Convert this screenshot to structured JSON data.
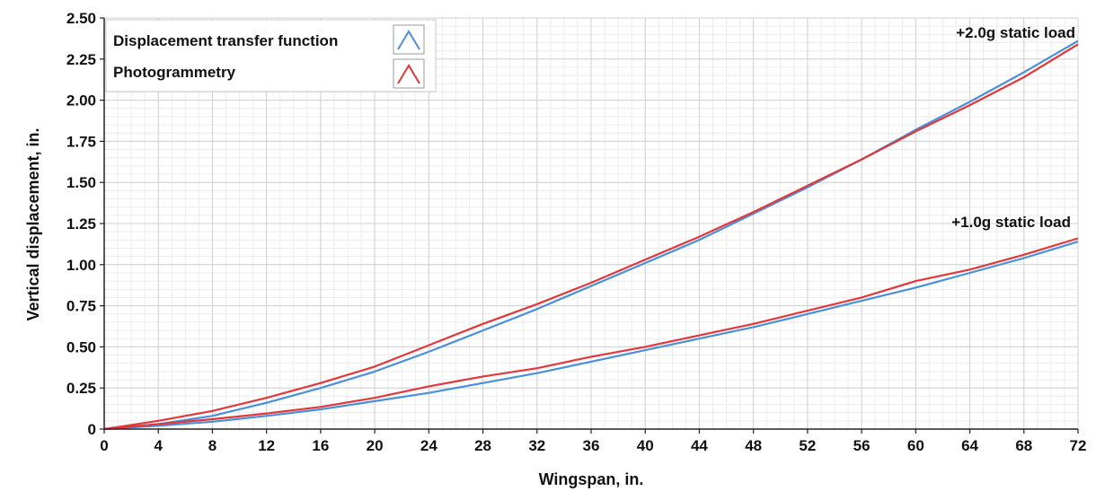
{
  "chart_data": {
    "type": "line",
    "xlabel": "Wingspan, in.",
    "ylabel": "Vertical displacement, in.",
    "xlim": [
      0,
      72
    ],
    "ylim": [
      0,
      2.5
    ],
    "x_ticks": [
      0,
      4,
      8,
      12,
      16,
      20,
      24,
      28,
      32,
      36,
      40,
      44,
      48,
      52,
      56,
      60,
      64,
      68,
      72
    ],
    "y_ticks": [
      "0",
      "0.25",
      "0.50",
      "0.75",
      "1.00",
      "1.25",
      "1.50",
      "1.75",
      "2.00",
      "2.25",
      "2.50"
    ],
    "grid": true,
    "legend": {
      "placement": "top-left",
      "entries": [
        {
          "label": "Displacement transfer function",
          "color": "#4a90d9"
        },
        {
          "label": "Photogrammetry",
          "color": "#e0383b"
        }
      ]
    },
    "annotations": [
      {
        "text": "+2.0g static load",
        "x": 72,
        "y": 2.43
      },
      {
        "text": "+1.0g static load",
        "x": 72,
        "y": 1.24
      }
    ],
    "series": [
      {
        "legend": "Displacement transfer function",
        "load": "+2.0g static load",
        "color": "#4a90d9",
        "x": [
          0,
          4,
          8,
          12,
          16,
          20,
          24,
          28,
          32,
          36,
          40,
          44,
          48,
          52,
          56,
          60,
          64,
          68,
          72
        ],
        "y": [
          0,
          0.03,
          0.08,
          0.16,
          0.25,
          0.35,
          0.47,
          0.6,
          0.73,
          0.87,
          1.01,
          1.15,
          1.31,
          1.47,
          1.64,
          1.82,
          1.99,
          2.17,
          2.36
        ]
      },
      {
        "legend": "Photogrammetry",
        "load": "+2.0g static load",
        "color": "#e0383b",
        "x": [
          0,
          4,
          8,
          12,
          16,
          20,
          24,
          28,
          32,
          36,
          40,
          44,
          48,
          52,
          56,
          60,
          64,
          68,
          72
        ],
        "y": [
          0,
          0.05,
          0.11,
          0.19,
          0.28,
          0.38,
          0.51,
          0.64,
          0.76,
          0.89,
          1.03,
          1.17,
          1.32,
          1.48,
          1.64,
          1.81,
          1.97,
          2.14,
          2.34
        ]
      },
      {
        "legend": "Displacement transfer function",
        "load": "+1.0g static load",
        "color": "#4a90d9",
        "x": [
          0,
          4,
          8,
          12,
          16,
          20,
          24,
          28,
          32,
          36,
          40,
          44,
          48,
          52,
          56,
          60,
          64,
          68,
          72
        ],
        "y": [
          0,
          0.02,
          0.045,
          0.08,
          0.12,
          0.17,
          0.22,
          0.28,
          0.34,
          0.41,
          0.48,
          0.55,
          0.62,
          0.7,
          0.78,
          0.86,
          0.95,
          1.04,
          1.14
        ]
      },
      {
        "legend": "Photogrammetry",
        "load": "+1.0g static load",
        "color": "#e0383b",
        "x": [
          0,
          4,
          8,
          12,
          16,
          20,
          24,
          28,
          32,
          36,
          40,
          44,
          48,
          52,
          56,
          60,
          64,
          68,
          72
        ],
        "y": [
          0,
          0.03,
          0.06,
          0.095,
          0.135,
          0.19,
          0.26,
          0.32,
          0.37,
          0.44,
          0.5,
          0.57,
          0.64,
          0.72,
          0.8,
          0.9,
          0.97,
          1.06,
          1.16
        ]
      }
    ]
  }
}
